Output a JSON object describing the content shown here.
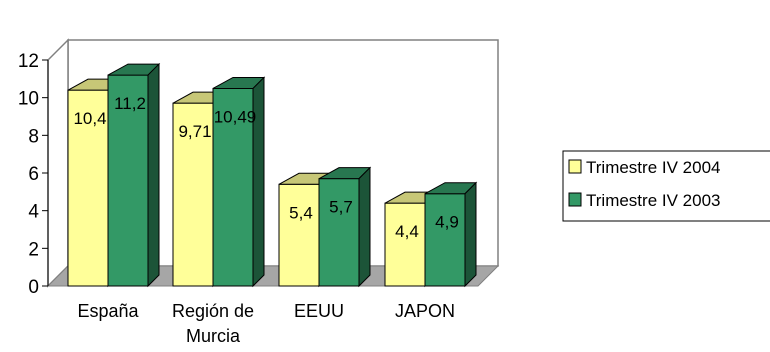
{
  "chart_data": {
    "type": "bar",
    "categories": [
      [
        "España"
      ],
      [
        "Región de",
        "Murcia"
      ],
      [
        "EEUU"
      ],
      [
        "JAPON"
      ]
    ],
    "series": [
      {
        "name": "Trimestre IV 2004",
        "values": [
          10.4,
          9.71,
          5.4,
          4.4
        ],
        "labels": [
          "10,4",
          "9,71",
          "5,4",
          "4,4"
        ],
        "color": "#FFFF99"
      },
      {
        "name": "Trimestre IV 2003",
        "values": [
          11.2,
          10.49,
          5.7,
          4.9
        ],
        "labels": [
          "11,2",
          "10,49",
          "5,7",
          "4,9"
        ],
        "color": "#339966"
      }
    ],
    "yticks": [
      "0",
      "2",
      "4",
      "6",
      "8",
      "10",
      "12"
    ],
    "ylim": [
      0,
      12
    ],
    "grid": false,
    "three_d": true,
    "legend_position": "right",
    "title": "",
    "xlabel": "",
    "ylabel": ""
  }
}
